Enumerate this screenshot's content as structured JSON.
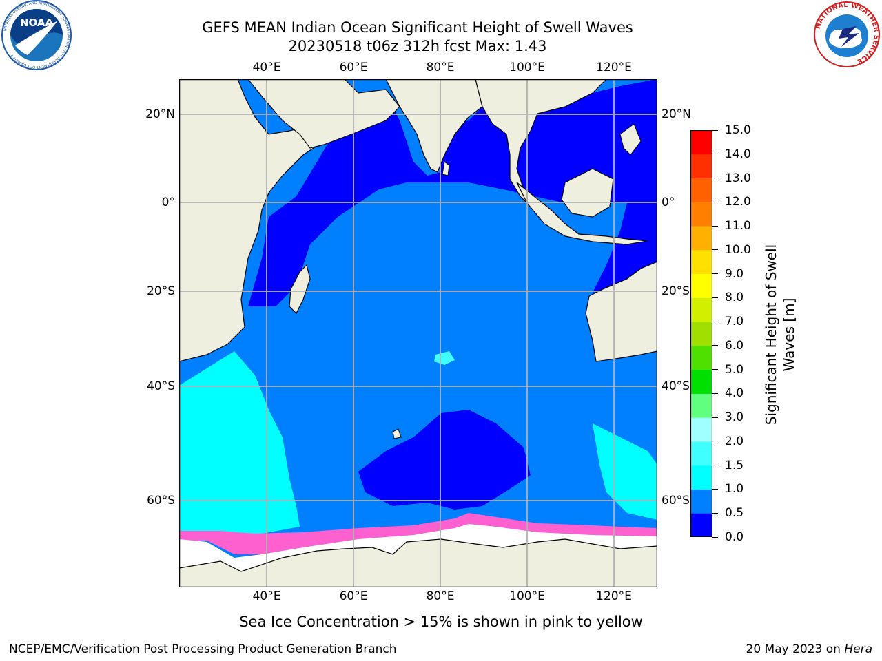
{
  "header": {
    "title_line1": "GEFS MEAN Indian Ocean Significant Height of Swell Waves",
    "title_line2": "20230518 t06z 312h fcst   Max: 1.43"
  },
  "logos": {
    "noaa_text": "NOAA",
    "noaa_ring_text": "NATIONAL OCEANIC AND ATMOSPHERIC ADMINISTRATION · U.S. DEPARTMENT OF COMMERCE",
    "nws_ring_text": "NATIONAL WEATHER SERVICE"
  },
  "map": {
    "lon_ticks": [
      "40°E",
      "60°E",
      "80°E",
      "100°E",
      "120°E"
    ],
    "lat_ticks": [
      "20°N",
      "0°",
      "20°S",
      "40°S",
      "60°S"
    ],
    "lon_values": [
      40,
      60,
      80,
      100,
      120
    ],
    "lat_values": [
      20,
      0,
      -20,
      -40,
      -60
    ],
    "lon_range": [
      20,
      130
    ],
    "lat_range": [
      -73,
      28
    ],
    "grid": true
  },
  "colorbar": {
    "title_line1": "Significant Height of Swell",
    "title_line2": "Waves [m]",
    "ticks": [
      "0.0",
      "0.5",
      "1.0",
      "1.5",
      "2.0",
      "3.0",
      "4.0",
      "5.0",
      "6.0",
      "7.0",
      "8.0",
      "9.0",
      "10.0",
      "11.0",
      "12.0",
      "13.0",
      "14.0",
      "15.0"
    ],
    "colors": [
      "#0000ff",
      "#0080ff",
      "#00ffff",
      "#40ffff",
      "#a0ffff",
      "#60ff80",
      "#00e000",
      "#50e000",
      "#a0e000",
      "#d0f000",
      "#ffff00",
      "#ffe000",
      "#ffb000",
      "#ff8000",
      "#ff6000",
      "#ff3000",
      "#ff0000"
    ]
  },
  "caption": "Sea Ice Concentration > 15% is shown in pink to yellow",
  "footer": {
    "left": "NCEP/EMC/Verification Post Processing Product Generation Branch",
    "right_prefix": "20 May 2023 on ",
    "right_host": "Hera"
  }
}
